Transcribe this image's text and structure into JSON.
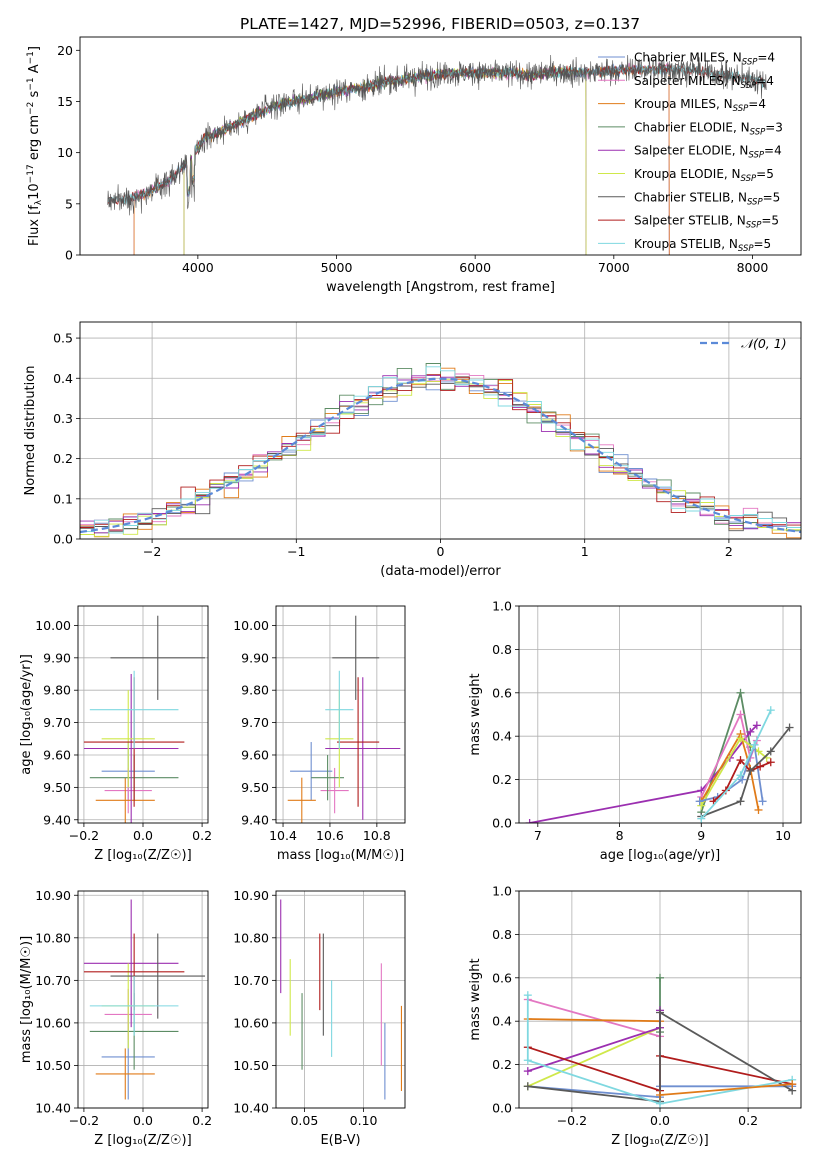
{
  "title": "PLATE=1427, MJD=52996, FIBERID=0503, z=0.137",
  "colors": {
    "chabrier_miles": "#6f8fd0",
    "salpeter_miles": "#e377c2",
    "kroupa_miles": "#e07b19",
    "chabrier_elodie": "#5c8c64",
    "salpeter_elodie": "#9b2fb0",
    "kroupa_elodie": "#cfe84a",
    "chabrier_stelib": "#5a5a5a",
    "salpeter_stelib": "#b01c1c",
    "kroupa_stelib": "#7fd8e0"
  },
  "chart_data": [
    {
      "id": "spectrum",
      "type": "line",
      "xlabel": "wavelength [Angstrom, rest frame]",
      "ylabel_main": "Flux [f",
      "ylabel_sub1": "λ",
      "ylabel_mid": "10",
      "ylabel_sup1": "−17",
      "ylabel_mid2": " erg cm",
      "ylabel_sup2": "−2",
      "ylabel_mid3": " s",
      "ylabel_sup3": "−1",
      "ylabel_mid4": " A",
      "ylabel_sup4": "−1",
      "ylabel_end": "]",
      "xlim": [
        3150,
        8350
      ],
      "ylim": [
        0,
        21.3
      ],
      "xticks": [
        4000,
        5000,
        6000,
        7000,
        8000
      ],
      "yticks": [
        0,
        5,
        10,
        15,
        20
      ],
      "legend": [
        {
          "pre": "Chabrier MILES, N",
          "sub": "SSP",
          "post": "=4",
          "color_key": "chabrier_miles"
        },
        {
          "pre": "Salpeter MILES, N",
          "sub": "SSP",
          "post": "=4",
          "color_key": "salpeter_miles"
        },
        {
          "pre": "Kroupa MILES, N",
          "sub": "SSP",
          "post": "=4",
          "color_key": "kroupa_miles"
        },
        {
          "pre": "Chabrier ELODIE, N",
          "sub": "SSP",
          "post": "=3",
          "color_key": "chabrier_elodie"
        },
        {
          "pre": "Salpeter ELODIE, N",
          "sub": "SSP",
          "post": "=4",
          "color_key": "salpeter_elodie"
        },
        {
          "pre": "Kroupa ELODIE, N",
          "sub": "SSP",
          "post": "=5",
          "color_key": "kroupa_elodie"
        },
        {
          "pre": "Chabrier STELIB, N",
          "sub": "SSP",
          "post": "=5",
          "color_key": "chabrier_stelib"
        },
        {
          "pre": "Salpeter STELIB, N",
          "sub": "SSP",
          "post": "=5",
          "color_key": "salpeter_stelib"
        },
        {
          "pre": "Kroupa STELIB, N",
          "sub": "SSP",
          "post": "=5",
          "color_key": "kroupa_stelib"
        }
      ],
      "continuum": [
        [
          3350,
          5.3
        ],
        [
          3500,
          5.5
        ],
        [
          3650,
          6.2
        ],
        [
          3800,
          7.3
        ],
        [
          3950,
          9.5
        ],
        [
          4050,
          11.5
        ],
        [
          4200,
          12.3
        ],
        [
          4400,
          13.6
        ],
        [
          4600,
          14.8
        ],
        [
          4800,
          15.3
        ],
        [
          5000,
          16.0
        ],
        [
          5200,
          16.4
        ],
        [
          5400,
          17.0
        ],
        [
          5600,
          17.4
        ],
        [
          5800,
          17.8
        ],
        [
          6000,
          17.8
        ],
        [
          6200,
          17.8
        ],
        [
          6400,
          17.6
        ],
        [
          6600,
          17.9
        ],
        [
          6800,
          17.8
        ],
        [
          7000,
          18.0
        ],
        [
          7200,
          18.1
        ],
        [
          7400,
          18.2
        ],
        [
          7600,
          18.0
        ],
        [
          7800,
          17.6
        ],
        [
          8000,
          17.2
        ],
        [
          8100,
          16.8
        ]
      ],
      "model_start": {
        "chabrier_miles": 3540,
        "salpeter_miles": 3540,
        "kroupa_miles": 3540,
        "chabrier_elodie": 3900,
        "salpeter_elodie": 3900,
        "kroupa_elodie": 3900
      },
      "model_end": {
        "chabrier_miles": 7400,
        "salpeter_miles": 7400,
        "kroupa_miles": 7400,
        "chabrier_elodie": 6800,
        "salpeter_elodie": 6800,
        "kroupa_elodie": 6800
      }
    },
    {
      "id": "residuals",
      "type": "line",
      "xlabel": "(data-model)/error",
      "ylabel": "Normed distribution",
      "xlim": [
        -2.5,
        2.5
      ],
      "ylim": [
        0,
        0.54
      ],
      "xticks": [
        -2,
        -1,
        0,
        1,
        2
      ],
      "yticks": [
        0.0,
        0.1,
        0.2,
        0.3,
        0.4,
        0.5
      ],
      "grid": true,
      "legend_label": "𝒩(0, 1)",
      "legend_position": "top-right",
      "bin_width": 0.1
    },
    {
      "id": "age_vs_Z",
      "type": "scatter",
      "xlabel": "Z [log₁₀(Z/Z☉)]",
      "ylabel": "age  [log₁₀(age/yr)]",
      "xlim": [
        -0.22,
        0.22
      ],
      "ylim": [
        9.39,
        10.06
      ],
      "xticks": [
        -0.2,
        0.0,
        0.2
      ],
      "yticks": [
        9.4,
        9.5,
        9.6,
        9.7,
        9.8,
        9.9,
        10.0
      ],
      "grid": true,
      "points": [
        {
          "c": "chabrier_miles",
          "x": -0.05,
          "y": 9.55,
          "xe": 0.09,
          "ye": 0.09
        },
        {
          "c": "salpeter_miles",
          "x": -0.05,
          "y": 9.49,
          "xe": 0.08,
          "ye": 0.07
        },
        {
          "c": "kroupa_miles",
          "x": -0.06,
          "y": 9.46,
          "xe": 0.1,
          "ye": 0.07
        },
        {
          "c": "chabrier_elodie",
          "x": -0.03,
          "y": 9.53,
          "xe": 0.15,
          "ye": 0.07
        },
        {
          "c": "salpeter_elodie",
          "x": -0.04,
          "y": 9.62,
          "xe": 0.16,
          "ye": 0.23
        },
        {
          "c": "kroupa_elodie",
          "x": -0.05,
          "y": 9.65,
          "xe": 0.09,
          "ye": 0.15
        },
        {
          "c": "chabrier_stelib",
          "x": 0.05,
          "y": 9.9,
          "xe": 0.16,
          "ye": 0.13
        },
        {
          "c": "salpeter_stelib",
          "x": -0.03,
          "y": 9.64,
          "xe": 0.17,
          "ye": 0.2
        },
        {
          "c": "kroupa_stelib",
          "x": -0.03,
          "y": 9.74,
          "xe": 0.15,
          "ye": 0.12
        }
      ]
    },
    {
      "id": "age_vs_mass",
      "type": "scatter",
      "xlabel": "mass [log₁₀(M/M☉)]",
      "ylabel": "",
      "xlim": [
        10.37,
        10.92
      ],
      "ylim": [
        9.39,
        10.06
      ],
      "xticks": [
        10.4,
        10.6,
        10.8
      ],
      "yticks": [
        9.4,
        9.5,
        9.6,
        9.7,
        9.8,
        9.9,
        10.0
      ],
      "grid": true,
      "points": [
        {
          "c": "chabrier_miles",
          "x": 10.52,
          "y": 9.55,
          "xe": 0.09,
          "ye": 0.09
        },
        {
          "c": "salpeter_miles",
          "x": 10.62,
          "y": 9.49,
          "xe": 0.06,
          "ye": 0.07
        },
        {
          "c": "kroupa_miles",
          "x": 10.48,
          "y": 9.46,
          "xe": 0.06,
          "ye": 0.07
        },
        {
          "c": "chabrier_elodie",
          "x": 10.59,
          "y": 9.53,
          "xe": 0.07,
          "ye": 0.07
        },
        {
          "c": "salpeter_elodie",
          "x": 10.74,
          "y": 9.62,
          "xe": 0.16,
          "ye": 0.22
        },
        {
          "c": "kroupa_elodie",
          "x": 10.64,
          "y": 9.65,
          "xe": 0.06,
          "ye": 0.15
        },
        {
          "c": "chabrier_stelib",
          "x": 10.71,
          "y": 9.9,
          "xe": 0.1,
          "ye": 0.13
        },
        {
          "c": "salpeter_stelib",
          "x": 10.72,
          "y": 9.64,
          "xe": 0.09,
          "ye": 0.2
        },
        {
          "c": "kroupa_stelib",
          "x": 10.64,
          "y": 9.74,
          "xe": 0.06,
          "ye": 0.12
        }
      ]
    },
    {
      "id": "weight_vs_age",
      "type": "line",
      "xlabel": "age  [log₁₀(age/yr)]",
      "ylabel": "mass weight",
      "xlim": [
        6.77,
        10.22
      ],
      "ylim": [
        0,
        1
      ],
      "xticks": [
        7,
        8,
        9,
        10
      ],
      "yticks": [
        0.0,
        0.2,
        0.4,
        0.6,
        0.8,
        1.0
      ],
      "grid": true,
      "series": [
        {
          "c": "chabrier_elodie",
          "pts": [
            [
              9.0,
              0.05
            ],
            [
              9.48,
              0.6
            ],
            [
              9.6,
              0.35
            ]
          ]
        },
        {
          "c": "salpeter_elodie",
          "pts": [
            [
              6.9,
              0.0
            ],
            [
              9.0,
              0.15
            ],
            [
              9.35,
              0.3
            ],
            [
              9.6,
              0.42
            ],
            [
              9.68,
              0.45
            ]
          ]
        },
        {
          "c": "salpeter_miles",
          "pts": [
            [
              9.0,
              0.12
            ],
            [
              9.48,
              0.5
            ],
            [
              9.6,
              0.3
            ],
            [
              9.68,
              0.38
            ]
          ]
        },
        {
          "c": "kroupa_miles",
          "pts": [
            [
              9.0,
              0.1
            ],
            [
              9.48,
              0.41
            ],
            [
              9.6,
              0.25
            ],
            [
              9.7,
              0.06
            ]
          ]
        },
        {
          "c": "kroupa_elodie",
          "pts": [
            [
              9.0,
              0.08
            ],
            [
              9.48,
              0.39
            ],
            [
              9.7,
              0.33
            ],
            [
              9.8,
              0.3
            ]
          ]
        },
        {
          "c": "chabrier_miles",
          "pts": [
            [
              8.98,
              0.1
            ],
            [
              9.2,
              0.12
            ],
            [
              9.5,
              0.2
            ],
            [
              9.65,
              0.36
            ],
            [
              9.75,
              0.1
            ]
          ]
        },
        {
          "c": "salpeter_stelib",
          "pts": [
            [
              9.15,
              0.1
            ],
            [
              9.3,
              0.15
            ],
            [
              9.48,
              0.29
            ],
            [
              9.6,
              0.24
            ],
            [
              9.72,
              0.26
            ],
            [
              9.85,
              0.28
            ]
          ]
        },
        {
          "c": "chabrier_stelib",
          "pts": [
            [
              9.0,
              0.03
            ],
            [
              9.48,
              0.1
            ],
            [
              9.6,
              0.24
            ],
            [
              9.85,
              0.33
            ],
            [
              10.08,
              0.44
            ]
          ]
        },
        {
          "c": "kroupa_stelib",
          "pts": [
            [
              9.0,
              0.02
            ],
            [
              9.48,
              0.22
            ],
            [
              9.65,
              0.36
            ],
            [
              9.85,
              0.52
            ]
          ]
        }
      ]
    },
    {
      "id": "mass_vs_Z",
      "type": "scatter",
      "xlabel": "Z [log₁₀(Z/Z☉)]",
      "ylabel": "mass [log₁₀(M/M☉)]",
      "xlim": [
        -0.22,
        0.22
      ],
      "ylim": [
        10.4,
        10.91
      ],
      "xticks": [
        -0.2,
        0.0,
        0.2
      ],
      "yticks": [
        10.4,
        10.5,
        10.6,
        10.7,
        10.8,
        10.9
      ],
      "grid": true,
      "points": [
        {
          "c": "chabrier_miles",
          "x": -0.05,
          "y": 10.52,
          "xe": 0.09,
          "ye": 0.1
        },
        {
          "c": "salpeter_miles",
          "x": -0.05,
          "y": 10.62,
          "xe": 0.08,
          "ye": 0.06
        },
        {
          "c": "kroupa_miles",
          "x": -0.06,
          "y": 10.48,
          "xe": 0.1,
          "ye": 0.06
        },
        {
          "c": "chabrier_elodie",
          "x": -0.03,
          "y": 10.58,
          "xe": 0.15,
          "ye": 0.09
        },
        {
          "c": "salpeter_elodie",
          "x": -0.04,
          "y": 10.74,
          "xe": 0.16,
          "ye": 0.15
        },
        {
          "c": "kroupa_elodie",
          "x": -0.05,
          "y": 10.64,
          "xe": 0.09,
          "ye": 0.1
        },
        {
          "c": "chabrier_stelib",
          "x": 0.05,
          "y": 10.71,
          "xe": 0.16,
          "ye": 0.1
        },
        {
          "c": "salpeter_stelib",
          "x": -0.03,
          "y": 10.72,
          "xe": 0.17,
          "ye": 0.09
        },
        {
          "c": "kroupa_stelib",
          "x": -0.03,
          "y": 10.64,
          "xe": 0.15,
          "ye": 0.07
        }
      ]
    },
    {
      "id": "mass_vs_ebv",
      "type": "scatter",
      "xlabel": "E(B-V)",
      "ylabel": "",
      "xlim": [
        0.026,
        0.135
      ],
      "ylim": [
        10.4,
        10.91
      ],
      "xticks": [
        0.05,
        0.1
      ],
      "yticks": [
        10.4,
        10.5,
        10.6,
        10.7,
        10.8,
        10.9
      ],
      "grid": true,
      "points": [
        {
          "c": "chabrier_miles",
          "x": 0.118,
          "y": 10.51,
          "ye": 0.09
        },
        {
          "c": "salpeter_miles",
          "x": 0.115,
          "y": 10.62,
          "ye": 0.12
        },
        {
          "c": "kroupa_miles",
          "x": 0.132,
          "y": 10.54,
          "ye": 0.1
        },
        {
          "c": "chabrier_elodie",
          "x": 0.048,
          "y": 10.58,
          "ye": 0.09
        },
        {
          "c": "salpeter_elodie",
          "x": 0.03,
          "y": 10.78,
          "ye": 0.11
        },
        {
          "c": "kroupa_elodie",
          "x": 0.038,
          "y": 10.66,
          "ye": 0.09
        },
        {
          "c": "chabrier_stelib",
          "x": 0.066,
          "y": 10.69,
          "ye": 0.12
        },
        {
          "c": "salpeter_stelib",
          "x": 0.063,
          "y": 10.72,
          "ye": 0.09
        },
        {
          "c": "kroupa_stelib",
          "x": 0.073,
          "y": 10.61,
          "ye": 0.09
        }
      ]
    },
    {
      "id": "weight_vs_Z",
      "type": "line",
      "xlabel": "Z [log₁₀(Z/Z☉)]",
      "ylabel": "mass weight",
      "xlim": [
        -0.32,
        0.32
      ],
      "ylim": [
        0,
        1
      ],
      "xticks": [
        -0.2,
        0.0,
        0.2
      ],
      "yticks": [
        0.0,
        0.2,
        0.4,
        0.6,
        0.8,
        1.0
      ],
      "grid": true,
      "series": [
        {
          "c": "chabrier_elodie",
          "pts": [
            [
              0.0,
              0.6
            ],
            [
              0.0,
              0.35
            ]
          ]
        },
        {
          "c": "salpeter_miles",
          "pts": [
            [
              -0.3,
              0.5
            ],
            [
              0.0,
              0.33
            ]
          ]
        },
        {
          "c": "kroupa_miles",
          "pts": [
            [
              -0.3,
              0.41
            ],
            [
              0.0,
              0.4
            ]
          ]
        },
        {
          "c": "chabrier_miles",
          "pts": [
            [
              -0.3,
              0.1
            ],
            [
              0.0,
              0.05
            ],
            [
              0.0,
              0.1
            ],
            [
              0.3,
              0.1
            ]
          ]
        },
        {
          "c": "kroupa_elodie",
          "pts": [
            [
              -0.3,
              0.1
            ],
            [
              0.0,
              0.37
            ]
          ]
        },
        {
          "c": "salpeter_elodie",
          "pts": [
            [
              -0.3,
              0.17
            ],
            [
              0.0,
              0.37
            ],
            [
              0.0,
              0.45
            ]
          ]
        },
        {
          "c": "salpeter_stelib",
          "pts": [
            [
              -0.3,
              0.28
            ],
            [
              0.0,
              0.08
            ],
            [
              0.0,
              0.24
            ],
            [
              0.3,
              0.11
            ]
          ]
        },
        {
          "c": "chabrier_stelib",
          "pts": [
            [
              -0.3,
              0.1
            ],
            [
              0.0,
              0.03
            ],
            [
              0.0,
              0.44
            ],
            [
              0.3,
              0.08
            ]
          ]
        },
        {
          "c": "kroupa_stelib",
          "pts": [
            [
              -0.3,
              0.52
            ],
            [
              -0.3,
              0.22
            ],
            [
              0.0,
              0.02
            ],
            [
              0.3,
              0.13
            ]
          ]
        },
        {
          "c": "kroupa_miles",
          "pts": [
            [
              0.0,
              0.06
            ],
            [
              0.3,
              0.11
            ]
          ]
        }
      ]
    }
  ]
}
